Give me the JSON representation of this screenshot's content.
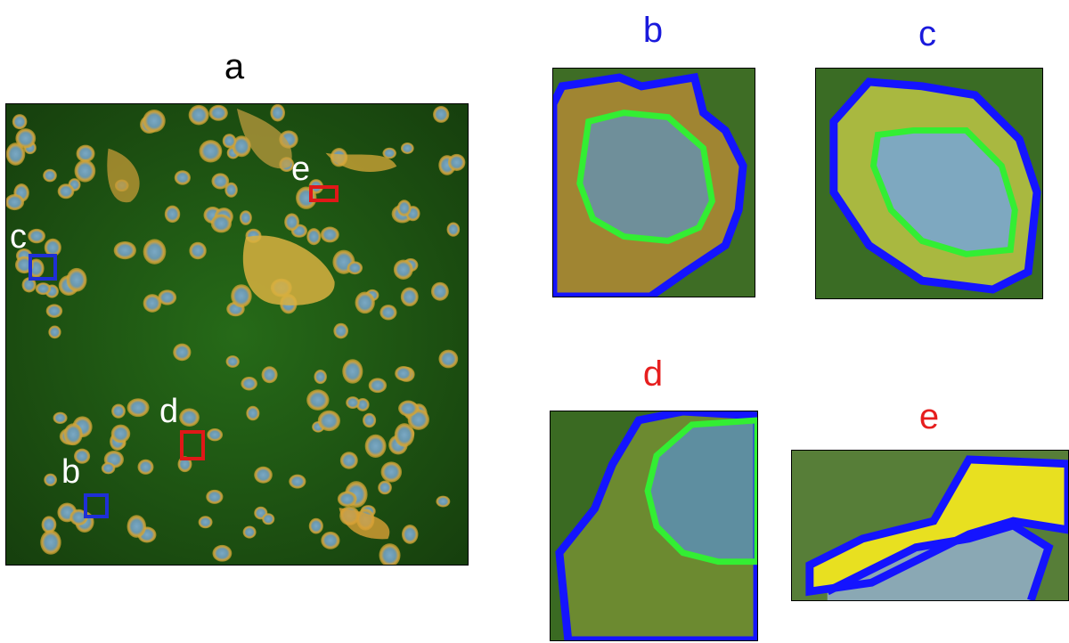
{
  "panels": {
    "a": {
      "label": "a",
      "label_color": "#000000"
    },
    "b": {
      "label": "b",
      "label_color": "#1a1adc"
    },
    "c": {
      "label": "c",
      "label_color": "#1a1adc"
    },
    "d": {
      "label": "d",
      "label_color": "#e61e1e"
    },
    "e": {
      "label": "e",
      "label_color": "#e61e1e"
    }
  },
  "markers": {
    "b": {
      "label": "b",
      "box_color": "#1f2fd6"
    },
    "c": {
      "label": "c",
      "box_color": "#1f2fd6"
    },
    "d": {
      "label": "d",
      "box_color": "#e01818"
    },
    "e": {
      "label": "e",
      "box_color": "#e01818"
    }
  },
  "colors": {
    "background_green": "#1f5c14",
    "cytoplasm": "#d9a830",
    "nucleus": "#6b98b0",
    "cell_boundary": "#1414ff",
    "nucleus_boundary": "#33ee33"
  }
}
